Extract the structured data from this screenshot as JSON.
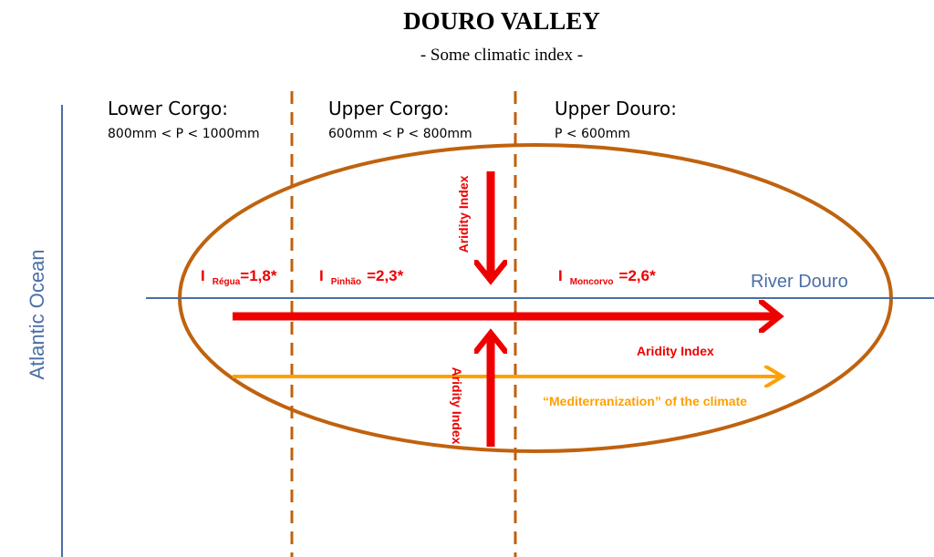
{
  "header": {
    "title": "DOURO VALLEY",
    "subtitle": "- Some climatic index -"
  },
  "regions": [
    {
      "name": "Lower Corgo:",
      "precipitation": "800mm < P < 1000mm"
    },
    {
      "name": "Upper Corgo:",
      "precipitation": "600mm < P < 800mm"
    },
    {
      "name": "Upper Douro:",
      "precipitation": "P < 600mm"
    }
  ],
  "ocean": "Atlantic Ocean",
  "river": "River Douro",
  "indices": [
    {
      "symbol": "I",
      "station": "Régua",
      "value": "=1,8*"
    },
    {
      "symbol": "I",
      "station": "Pinhão",
      "value": "=2,3*"
    },
    {
      "symbol": "I",
      "station": "Moncorvo",
      "value": "=2,6*"
    }
  ],
  "arrows": {
    "vertical_top": "Aridity Index",
    "horizontal": "Aridity Index",
    "vertical_bottom": "Aridity Index",
    "mediterranization": "“Mediterranization” of the climate"
  }
}
